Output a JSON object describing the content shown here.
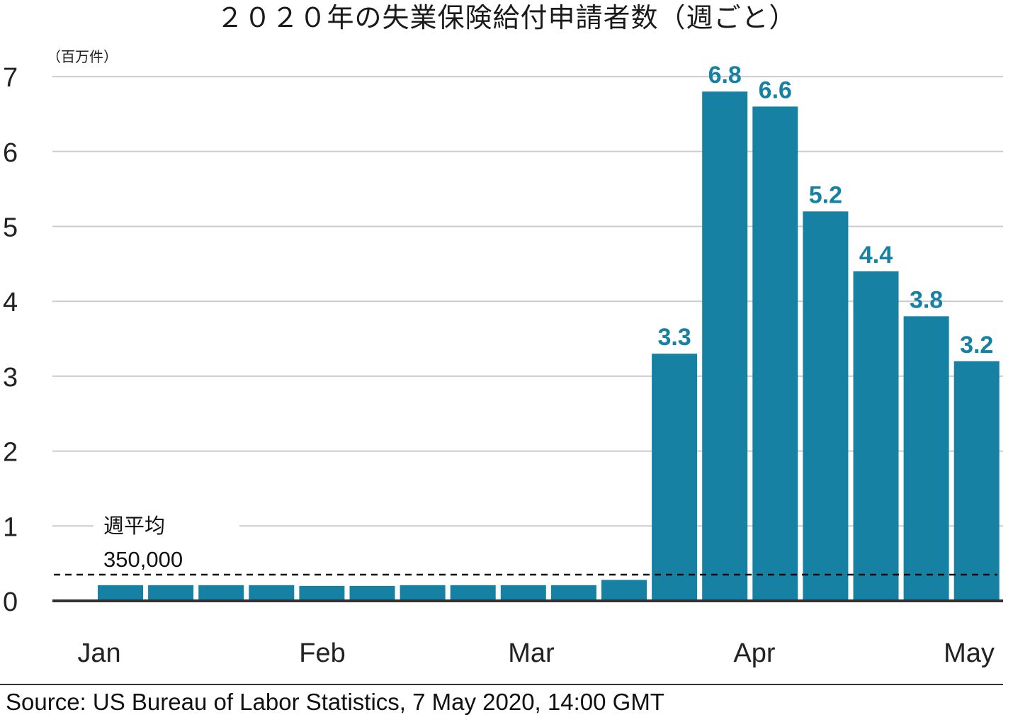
{
  "title": "２０２０年の失業保険給付申請者数（週ごと）",
  "unit_label": "（百万件）",
  "source": "Source: US Bureau of Labor Statistics, 7 May 2020, 14:00 GMT",
  "colors": {
    "bar": "#1681a2",
    "label": "#1681a2",
    "grid": "#cccccc",
    "axis": "#333333",
    "text": "#222222"
  },
  "chart_data": {
    "type": "bar",
    "title": "２０２０年の失業保険給付申請者数（週ごと）",
    "ylabel": "（百万件）",
    "ylim": [
      0,
      7
    ],
    "yticks": [
      "0",
      "1",
      "2",
      "3",
      "4",
      "5",
      "6",
      "7"
    ],
    "grid": true,
    "x_month_labels": [
      "Jan",
      "Feb",
      "Mar",
      "Apr",
      "May"
    ],
    "values": [
      0.21,
      0.21,
      0.21,
      0.21,
      0.2,
      0.2,
      0.21,
      0.21,
      0.21,
      0.21,
      0.28,
      3.3,
      6.8,
      6.6,
      5.2,
      4.4,
      3.8,
      3.2
    ],
    "data_labels": [
      "",
      "",
      "",
      "",
      "",
      "",
      "",
      "",
      "",
      "",
      "",
      "3.3",
      "6.8",
      "6.6",
      "5.2",
      "4.4",
      "3.8",
      "3.2"
    ],
    "reference_line": {
      "value": 0.35,
      "label_line1": "週平均",
      "label_line2": "350,000",
      "style": "dashed"
    }
  }
}
